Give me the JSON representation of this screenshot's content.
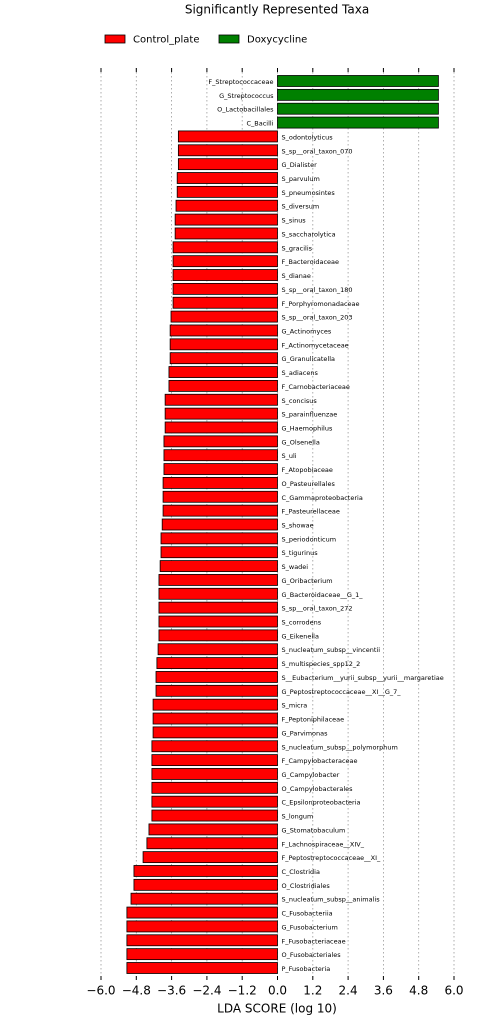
{
  "chart_data": {
    "type": "bar",
    "orientation": "horizontal",
    "title": "Significantly Represented Taxa",
    "x_label": "LDA SCORE (log 10)",
    "categories": [
      "F_Streptococcaceae",
      "G_Streptococcus",
      "O_Lactobacillales",
      "C_Bacilli",
      "S_odontolyticus",
      "S_sp__oral_taxon_070",
      "G_Dialister",
      "S_parvulum",
      "S_pneumosintes",
      "S_diversum",
      "S_sinus",
      "S_saccharolytica",
      "S_gracilis",
      "F_Bacteroidaceae",
      "S_dianae",
      "S_sp__oral_taxon_180",
      "F_Porphyromonadaceae",
      "S_sp__oral_taxon_203",
      "G_Actinomyces",
      "F_Actinomycetaceae",
      "G_Granulicatella",
      "S_adiacens",
      "F_Carnobacteriaceae",
      "S_concisus",
      "S_parainfluenzae",
      "G_Haemophilus",
      "G_Olsenella",
      "S_uli",
      "F_Atopobiaceae",
      "O_Pasteurellales",
      "C_Gammaproteobacteria",
      "F_Pasteurellaceae",
      "S_showae",
      "S_periodonticum",
      "S_tigurinus",
      "S_wadei",
      "G_Oribacterium",
      "G_Bacteroidaceae__G_1_",
      "S_sp__oral_taxon_272",
      "S_corrodens",
      "G_Eikenella",
      "S_nucleatum_subsp__vincentii",
      "S_multispecies_spp12_2",
      "S__Eubacterium__yurii_subsp__yurii__margaretiae",
      "G_Peptostreptococcaceae__XI__G_7_",
      "S_micra",
      "F_Peptoniphilaceae",
      "G_Parvimonas",
      "S_nucleatum_subsp__polymorphum",
      "F_Campylobacteraceae",
      "G_Campylobacter",
      "O_Campylobacterales",
      "C_Epsilonproteobacteria",
      "S_longum",
      "G_Stomatobaculum",
      "F_Lachnospiraceae__XIV_",
      "F_Peptostreptococcaceae__XI_",
      "C_Clostridia",
      "O_Clostridiales",
      "S_nucleatum_subsp__animalis",
      "C_Fusobacteriia",
      "G_Fusobacterium",
      "F_Fusobacteriaceae",
      "O_Fusobacteriales",
      "P_Fusobacteria"
    ],
    "series": [
      {
        "name": "Control_plate",
        "color": "#ff0000",
        "values": [
          null,
          null,
          null,
          null,
          -3.37,
          -3.37,
          -3.37,
          -3.41,
          -3.41,
          -3.45,
          -3.48,
          -3.48,
          -3.55,
          -3.55,
          -3.55,
          -3.55,
          -3.55,
          -3.62,
          -3.65,
          -3.65,
          -3.65,
          -3.69,
          -3.69,
          -3.82,
          -3.82,
          -3.82,
          -3.86,
          -3.86,
          -3.86,
          -3.89,
          -3.89,
          -3.89,
          -3.92,
          -3.96,
          -3.96,
          -3.99,
          -4.03,
          -4.03,
          -4.03,
          -4.03,
          -4.03,
          -4.06,
          -4.1,
          -4.13,
          -4.13,
          -4.23,
          -4.23,
          -4.23,
          -4.27,
          -4.27,
          -4.27,
          -4.27,
          -4.27,
          -4.27,
          -4.37,
          -4.44,
          -4.57,
          -4.88,
          -4.88,
          -4.98,
          -5.12,
          -5.12,
          -5.12,
          -5.12,
          -5.12
        ]
      },
      {
        "name": "Doxycycline",
        "color": "#008000",
        "values": [
          5.47,
          5.47,
          5.47,
          5.47,
          null,
          null,
          null,
          null,
          null,
          null,
          null,
          null,
          null,
          null,
          null,
          null,
          null,
          null,
          null,
          null,
          null,
          null,
          null,
          null,
          null,
          null,
          null,
          null,
          null,
          null,
          null,
          null,
          null,
          null,
          null,
          null,
          null,
          null,
          null,
          null,
          null,
          null,
          null,
          null,
          null,
          null,
          null,
          null,
          null,
          null,
          null,
          null,
          null,
          null,
          null,
          null,
          null,
          null,
          null,
          null,
          null,
          null,
          null,
          null,
          null
        ]
      }
    ],
    "xlim": [
      -6,
      6
    ],
    "xticks": [
      {
        "value": -6,
        "label": "−6.0"
      },
      {
        "value": -4.8,
        "label": "−4.8"
      },
      {
        "value": -3.6,
        "label": "−3.6"
      },
      {
        "value": -2.4,
        "label": "−2.4"
      },
      {
        "value": -1.2,
        "label": "−1.2"
      },
      {
        "value": 0,
        "label": "0.0"
      },
      1.2,
      2.4,
      3.6,
      4.8,
      {
        "value": 6,
        "label": "6.0"
      }
    ],
    "grid": true,
    "legend": "top-left"
  }
}
